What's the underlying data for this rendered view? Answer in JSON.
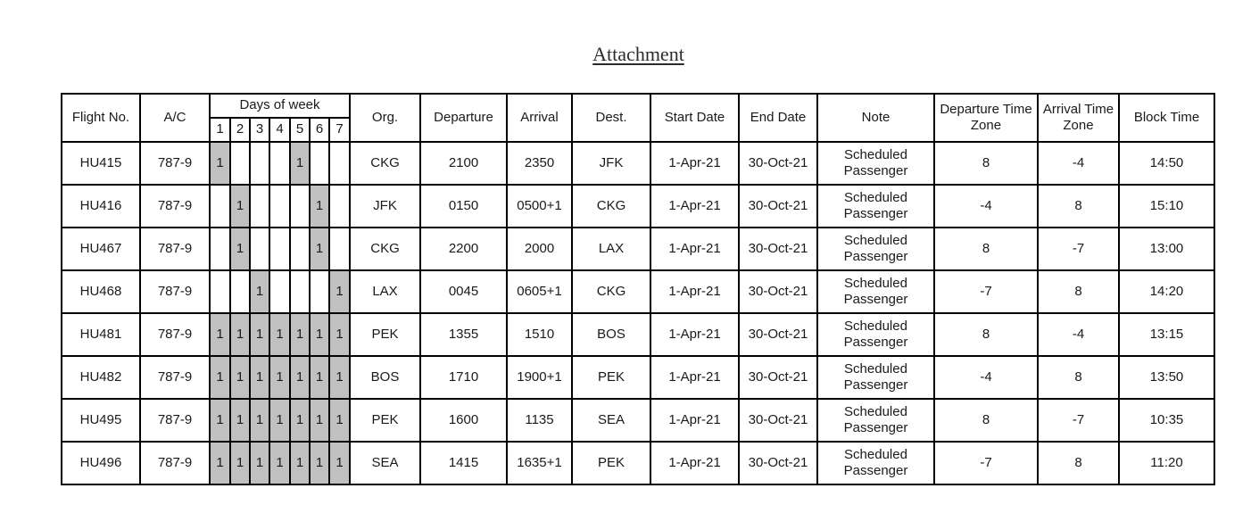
{
  "page_title": "Attachment",
  "colors": {
    "day_marked_bg": "#c0c0c0",
    "border": "#000000",
    "text": "#1a1a1a",
    "background": "#ffffff"
  },
  "table": {
    "headers": {
      "flight_no": "Flight No.",
      "aircraft": "A/C",
      "days_of_week": "Days of week",
      "day_numbers": [
        "1",
        "2",
        "3",
        "4",
        "5",
        "6",
        "7"
      ],
      "org": "Org.",
      "departure": "Departure",
      "arrival": "Arrival",
      "dest": "Dest.",
      "start_date": "Start Date",
      "end_date": "End Date",
      "note": "Note",
      "departure_time_zone": "Departure Time Zone",
      "arrival_time_zone": "Arrival Time Zone",
      "block_time": "Block Time"
    },
    "rows": [
      {
        "flight_no": "HU415",
        "aircraft": "787-9",
        "days": [
          "1",
          "",
          "",
          "",
          "1",
          "",
          ""
        ],
        "org": "CKG",
        "departure": "2100",
        "arrival": "2350",
        "dest": "JFK",
        "start_date": "1-Apr-21",
        "end_date": "30-Oct-21",
        "note": "Scheduled Passenger",
        "departure_time_zone": "8",
        "arrival_time_zone": "-4",
        "block_time": "14:50"
      },
      {
        "flight_no": "HU416",
        "aircraft": "787-9",
        "days": [
          "",
          "1",
          "",
          "",
          "",
          "1",
          ""
        ],
        "org": "JFK",
        "departure": "0150",
        "arrival": "0500+1",
        "dest": "CKG",
        "start_date": "1-Apr-21",
        "end_date": "30-Oct-21",
        "note": "Scheduled Passenger",
        "departure_time_zone": "-4",
        "arrival_time_zone": "8",
        "block_time": "15:10"
      },
      {
        "flight_no": "HU467",
        "aircraft": "787-9",
        "days": [
          "",
          "1",
          "",
          "",
          "",
          "1",
          ""
        ],
        "org": "CKG",
        "departure": "2200",
        "arrival": "2000",
        "dest": "LAX",
        "start_date": "1-Apr-21",
        "end_date": "30-Oct-21",
        "note": "Scheduled Passenger",
        "departure_time_zone": "8",
        "arrival_time_zone": "-7",
        "block_time": "13:00"
      },
      {
        "flight_no": "HU468",
        "aircraft": "787-9",
        "days": [
          "",
          "",
          "1",
          "",
          "",
          "",
          "1"
        ],
        "org": "LAX",
        "departure": "0045",
        "arrival": "0605+1",
        "dest": "CKG",
        "start_date": "1-Apr-21",
        "end_date": "30-Oct-21",
        "note": "Scheduled Passenger",
        "departure_time_zone": "-7",
        "arrival_time_zone": "8",
        "block_time": "14:20"
      },
      {
        "flight_no": "HU481",
        "aircraft": "787-9",
        "days": [
          "1",
          "1",
          "1",
          "1",
          "1",
          "1",
          "1"
        ],
        "org": "PEK",
        "departure": "1355",
        "arrival": "1510",
        "dest": "BOS",
        "start_date": "1-Apr-21",
        "end_date": "30-Oct-21",
        "note": "Scheduled Passenger",
        "departure_time_zone": "8",
        "arrival_time_zone": "-4",
        "block_time": "13:15"
      },
      {
        "flight_no": "HU482",
        "aircraft": "787-9",
        "days": [
          "1",
          "1",
          "1",
          "1",
          "1",
          "1",
          "1"
        ],
        "org": "BOS",
        "departure": "1710",
        "arrival": "1900+1",
        "dest": "PEK",
        "start_date": "1-Apr-21",
        "end_date": "30-Oct-21",
        "note": "Scheduled Passenger",
        "departure_time_zone": "-4",
        "arrival_time_zone": "8",
        "block_time": "13:50"
      },
      {
        "flight_no": "HU495",
        "aircraft": "787-9",
        "days": [
          "1",
          "1",
          "1",
          "1",
          "1",
          "1",
          "1"
        ],
        "org": "PEK",
        "departure": "1600",
        "arrival": "1135",
        "dest": "SEA",
        "start_date": "1-Apr-21",
        "end_date": "30-Oct-21",
        "note": "Scheduled Passenger",
        "departure_time_zone": "8",
        "arrival_time_zone": "-7",
        "block_time": "10:35"
      },
      {
        "flight_no": "HU496",
        "aircraft": "787-9",
        "days": [
          "1",
          "1",
          "1",
          "1",
          "1",
          "1",
          "1"
        ],
        "org": "SEA",
        "departure": "1415",
        "arrival": "1635+1",
        "dest": "PEK",
        "start_date": "1-Apr-21",
        "end_date": "30-Oct-21",
        "note": "Scheduled Passenger",
        "departure_time_zone": "-7",
        "arrival_time_zone": "8",
        "block_time": "11:20"
      }
    ]
  }
}
